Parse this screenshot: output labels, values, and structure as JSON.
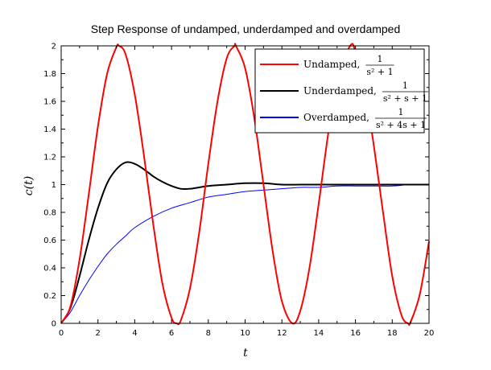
{
  "chart_data": {
    "type": "line",
    "title": "Step Response of undamped, underdamped and overdamped",
    "xlabel": "t",
    "ylabel": "c(t)",
    "xlim": [
      0,
      20
    ],
    "ylim": [
      0,
      2
    ],
    "xticks": [
      "0",
      "2",
      "4",
      "6",
      "8",
      "10",
      "12",
      "14",
      "16",
      "18",
      "20"
    ],
    "yticks": [
      "0",
      "0.2",
      "0.4",
      "0.6",
      "0.8",
      "1",
      "1.2",
      "1.4",
      "1.6",
      "1.8",
      "2"
    ],
    "grid": false,
    "legend_position": "top-right",
    "series": [
      {
        "name": "Undamped,",
        "formula_numerator": "1",
        "formula_denominator": "s² + 1",
        "color": "#ff0000",
        "x": [
          0,
          0.5,
          1,
          1.5,
          2,
          2.5,
          3,
          3.14,
          3.5,
          4,
          4.5,
          5,
          5.5,
          6,
          6.28,
          6.5,
          7,
          7.5,
          8,
          8.5,
          9,
          9.42,
          9.5,
          10,
          10.5,
          11,
          11.5,
          12,
          12.57,
          13,
          13.5,
          14,
          14.5,
          15,
          15.71,
          16,
          16.5,
          17,
          17.5,
          18,
          18.5,
          18.85,
          19,
          19.5,
          20
        ],
        "values": [
          0,
          0.12,
          0.46,
          0.93,
          1.42,
          1.8,
          1.99,
          2.0,
          1.94,
          1.65,
          1.21,
          0.72,
          0.29,
          0.04,
          0.0,
          0.02,
          0.25,
          0.65,
          1.15,
          1.6,
          1.91,
          2.0,
          2.0,
          1.84,
          1.48,
          1.0,
          0.52,
          0.16,
          0.0,
          0.09,
          0.4,
          0.86,
          1.35,
          1.76,
          2.0,
          1.96,
          1.71,
          1.28,
          0.8,
          0.34,
          0.06,
          0.0,
          0.01,
          0.21,
          0.59
        ]
      },
      {
        "name": "Underdamped,",
        "formula_numerator": "1",
        "formula_denominator": "s² + s + 1",
        "color": "#000000",
        "x": [
          0,
          0.5,
          1,
          1.5,
          2,
          2.5,
          3,
          3.5,
          4,
          4.5,
          5,
          5.5,
          6,
          6.5,
          7,
          7.5,
          8,
          9,
          10,
          11,
          12,
          13,
          14,
          15,
          16,
          17,
          18,
          19,
          20
        ],
        "values": [
          0,
          0.11,
          0.34,
          0.6,
          0.83,
          1.01,
          1.11,
          1.16,
          1.15,
          1.11,
          1.06,
          1.02,
          0.99,
          0.97,
          0.97,
          0.98,
          0.99,
          1.0,
          1.01,
          1.01,
          1.0,
          1.0,
          1.0,
          1.0,
          1.0,
          1.0,
          1.0,
          1.0,
          1.0
        ]
      },
      {
        "name": "Overdamped,",
        "formula_numerator": "1",
        "formula_denominator": "s² + 4s + 1",
        "color": "#0000ff",
        "x": [
          0,
          0.5,
          1,
          1.5,
          2,
          2.5,
          3,
          3.5,
          4,
          5,
          6,
          7,
          8,
          9,
          10,
          11,
          12,
          13,
          14,
          15,
          16,
          17,
          18,
          19,
          20
        ],
        "values": [
          0,
          0.08,
          0.2,
          0.31,
          0.41,
          0.5,
          0.57,
          0.63,
          0.69,
          0.77,
          0.83,
          0.87,
          0.91,
          0.93,
          0.95,
          0.96,
          0.97,
          0.98,
          0.98,
          0.99,
          0.99,
          0.99,
          0.99,
          1.0,
          1.0
        ]
      }
    ]
  }
}
